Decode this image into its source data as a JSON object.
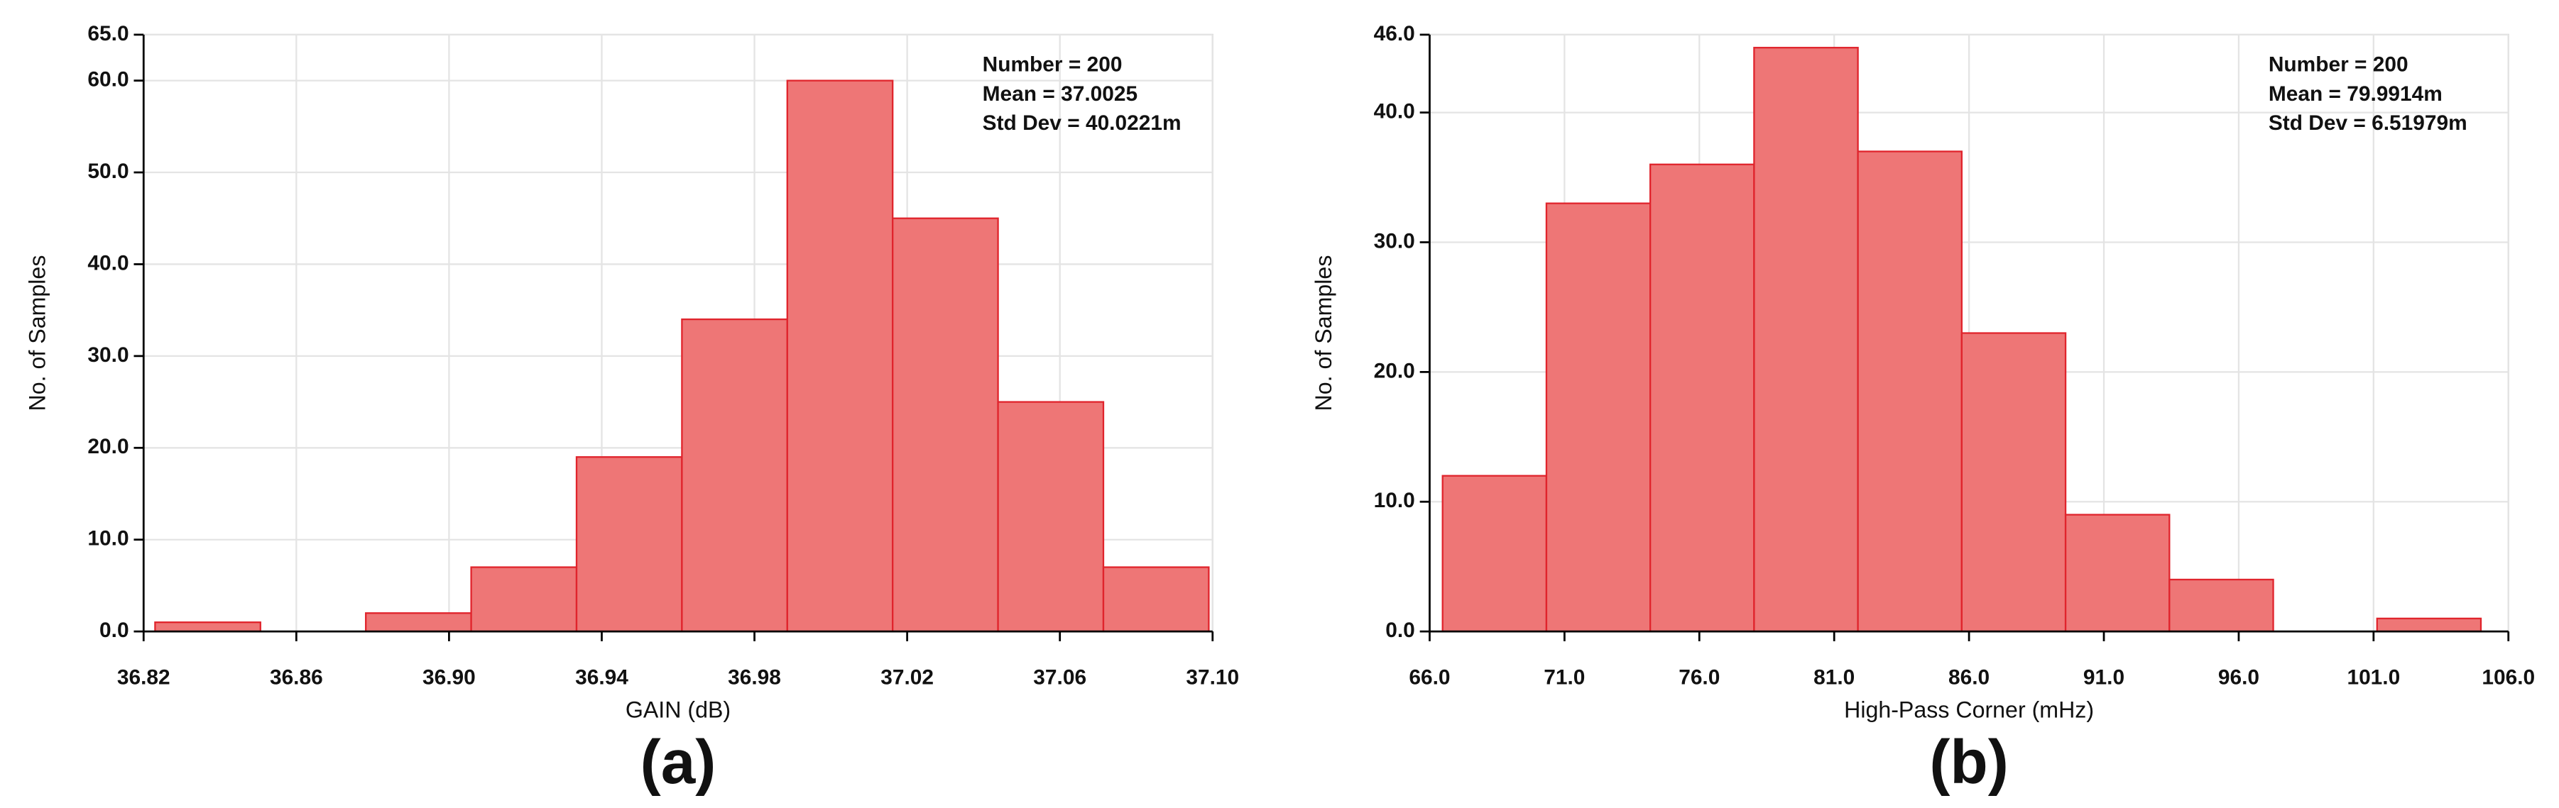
{
  "chart_data": [
    {
      "type": "histogram",
      "label": "(a)",
      "x_label": "GAIN (dB)",
      "y_label": "No. of Samples",
      "annotations": [
        "Number = 200",
        "Mean = 37.0025",
        "Std Dev = 40.0221m"
      ],
      "bins": [
        36.823,
        36.8506,
        36.8782,
        36.9058,
        36.9334,
        36.961,
        36.9886,
        37.0162,
        37.0438,
        37.0714,
        37.099
      ],
      "values": [
        1,
        0,
        2,
        7,
        19,
        34,
        60,
        45,
        25,
        7
      ],
      "color": "#ee7676",
      "edge_color": "#e0242c",
      "xlim": [
        36.82,
        37.1
      ],
      "xticks": [
        36.82,
        36.86,
        {
          "value": 36.9,
          "label": "36.90"
        },
        36.94,
        36.98,
        37.02,
        37.06,
        {
          "value": 37.1,
          "label": "37.10"
        }
      ],
      "ylim": [
        0,
        65
      ],
      "yticks": [
        {
          "value": 0,
          "label": "0.0"
        },
        {
          "value": 10,
          "label": "10.0"
        },
        {
          "value": 20,
          "label": "20.0"
        },
        {
          "value": 30,
          "label": "30.0"
        },
        {
          "value": 40,
          "label": "40.0"
        },
        {
          "value": 50,
          "label": "50.0"
        },
        {
          "value": 60,
          "label": "60.0"
        },
        {
          "value": 65,
          "label": "65.0"
        }
      ],
      "grid": true
    },
    {
      "type": "histogram",
      "label": "(b)",
      "x_label": "High-Pass Corner (mHz)",
      "y_label": "No. of Samples",
      "annotations": [
        "Number = 200",
        "Mean = 79.9914m",
        "Std Dev = 6.51979m"
      ],
      "bins": [
        66.48,
        70.33,
        74.18,
        78.03,
        81.88,
        85.73,
        89.58,
        93.43,
        97.28,
        101.13,
        104.98
      ],
      "values": [
        12,
        33,
        36,
        45,
        37,
        23,
        9,
        4,
        0,
        1
      ],
      "color": "#ee7676",
      "edge_color": "#e0242c",
      "xlim": [
        66,
        106
      ],
      "xticks": [
        {
          "value": 66,
          "label": "66.0"
        },
        {
          "value": 71,
          "label": "71.0"
        },
        {
          "value": 76,
          "label": "76.0"
        },
        {
          "value": 81,
          "label": "81.0"
        },
        {
          "value": 86,
          "label": "86.0"
        },
        {
          "value": 91,
          "label": "91.0"
        },
        {
          "value": 96,
          "label": "96.0"
        },
        {
          "value": 101,
          "label": "101.0"
        },
        {
          "value": 106,
          "label": "106.0"
        }
      ],
      "ylim": [
        0,
        46
      ],
      "yticks": [
        {
          "value": 0,
          "label": "0.0"
        },
        {
          "value": 10,
          "label": "10.0"
        },
        {
          "value": 20,
          "label": "20.0"
        },
        {
          "value": 30,
          "label": "30.0"
        },
        {
          "value": 40,
          "label": "40.0"
        },
        {
          "value": 46,
          "label": "46.0"
        }
      ],
      "grid": true
    }
  ]
}
